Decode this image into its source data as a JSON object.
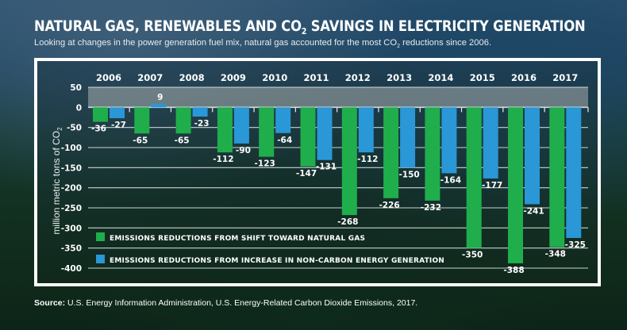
{
  "header": {
    "title_main": "NATURAL GAS, RENEWABLES AND CO",
    "title_sub": "2",
    "title_tail": " SAVINGS IN ELECTRICITY GENERATION",
    "subtitle_main": "Looking at changes in the power generation fuel mix, natural gas accounted for the most CO",
    "subtitle_sub": "2",
    "subtitle_tail": " reductions since 2006."
  },
  "footer": {
    "source_label": "Source:",
    "source_text": " U.S. Energy Information Administration, U.S. Energy-Related Carbon Dioxide Emissions, 2017."
  },
  "chart_data": {
    "type": "bar",
    "title": "NATURAL GAS, RENEWABLES AND CO2 SAVINGS IN ELECTRICITY GENERATION",
    "subtitle": "Looking at changes in the power generation fuel mix, natural gas accounted for the most CO2 reductions since 2006.",
    "xlabel": "",
    "ylabel": "million metric tons of CO2",
    "ylabel_main": "million metric tons of CO",
    "ylabel_sub": "2",
    "ylim": [
      -400,
      50
    ],
    "yticks": [
      50,
      0,
      -50,
      -100,
      -150,
      -200,
      -250,
      -300,
      -350,
      -400
    ],
    "grid": true,
    "categories": [
      "2006",
      "2007",
      "2008",
      "2009",
      "2010",
      "2011",
      "2012",
      "2013",
      "2014",
      "2015",
      "2016",
      "2017"
    ],
    "series": [
      {
        "name": "EMISSIONS REDUCTIONS FROM SHIFT TOWARD NATURAL GAS",
        "color": "#1fae4b",
        "values": [
          -36,
          -65,
          -65,
          -112,
          -123,
          -147,
          -268,
          -226,
          -232,
          -350,
          -388,
          -348
        ]
      },
      {
        "name": "EMISSIONS REDUCTIONS FROM INCREASE IN NON-CARBON ENERGY GENERATION",
        "color": "#2a97d6",
        "values": [
          -27,
          9,
          -23,
          -90,
          -64,
          -131,
          -112,
          -150,
          -164,
          -177,
          -241,
          -325
        ]
      }
    ],
    "legend_position": "bottom-left",
    "shaded_band": [
      0,
      50
    ]
  }
}
